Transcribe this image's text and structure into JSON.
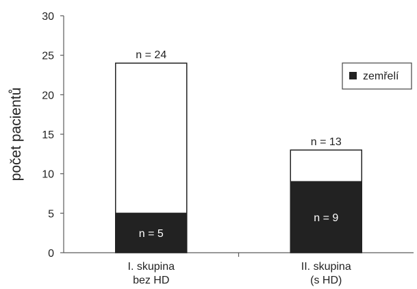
{
  "chart_data": {
    "type": "bar",
    "stacked": true,
    "ylabel": "počet pacientů",
    "ylim": [
      0,
      30
    ],
    "yticks": [
      0,
      5,
      10,
      15,
      20,
      25,
      30
    ],
    "grid": false,
    "legend_position": "top-right",
    "categories": [
      [
        "I. skupina",
        "bez HD"
      ],
      [
        "II. skupina",
        "(s HD)"
      ]
    ],
    "series": [
      {
        "name": "zemřelí",
        "color": "#222222",
        "values": [
          5,
          9
        ]
      },
      {
        "color": "#ffffff",
        "values": [
          19,
          4
        ]
      }
    ],
    "totals": [
      24,
      13
    ],
    "top_labels": [
      "n = 24",
      "n = 13"
    ],
    "inner_labels": [
      "n = 5",
      "n = 9"
    ]
  }
}
